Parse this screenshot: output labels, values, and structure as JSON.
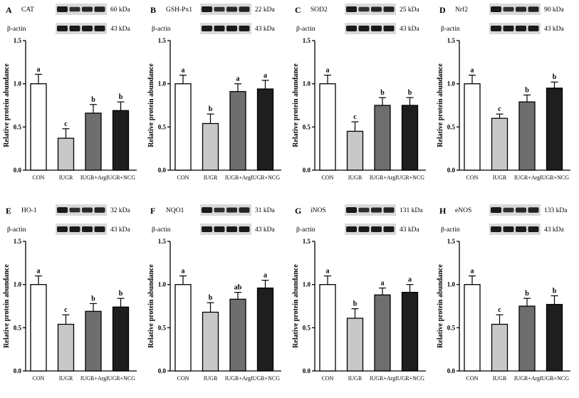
{
  "chart_data": [
    {
      "type": "bar",
      "panel": "A",
      "protein": "CAT",
      "protein_kda": "60 kDa",
      "reference": "β-actin",
      "reference_kda": "43 kDa",
      "categories": [
        "CON",
        "IUGR",
        "IUGR+Arg",
        "IUGR+NCG"
      ],
      "values": [
        1.0,
        0.37,
        0.66,
        0.69
      ],
      "errors": [
        0.11,
        0.11,
        0.1,
        0.1
      ],
      "significance": [
        "a",
        "c",
        "b",
        "b"
      ],
      "ylabel": "Relative protein abundance",
      "ylim": [
        0,
        1.5
      ],
      "yticks": [
        "0.0",
        "0.5",
        "1.0",
        "1.5"
      ]
    },
    {
      "type": "bar",
      "panel": "B",
      "protein": "GSH-Px1",
      "protein_kda": "22 kDa",
      "reference": "β-actin",
      "reference_kda": "43 kDa",
      "categories": [
        "CON",
        "IUGR",
        "IUGR+Arg",
        "IUGR+NCG"
      ],
      "values": [
        1.0,
        0.54,
        0.91,
        0.94
      ],
      "errors": [
        0.1,
        0.11,
        0.09,
        0.1
      ],
      "significance": [
        "a",
        "b",
        "a",
        "a"
      ],
      "ylabel": "Relative protein abundance",
      "ylim": [
        0,
        1.5
      ],
      "yticks": [
        "0.0",
        "0.5",
        "1.0",
        "1.5"
      ]
    },
    {
      "type": "bar",
      "panel": "C",
      "protein": "SOD2",
      "protein_kda": "25 kDa",
      "reference": "β-actin",
      "reference_kda": "43 kDa",
      "categories": [
        "CON",
        "IUGR",
        "IUGR+Arg",
        "IUGR+NCG"
      ],
      "values": [
        1.0,
        0.45,
        0.75,
        0.75
      ],
      "errors": [
        0.1,
        0.11,
        0.09,
        0.09
      ],
      "significance": [
        "a",
        "c",
        "b",
        "b"
      ],
      "ylabel": "Relative protein abundance",
      "ylim": [
        0,
        1.5
      ],
      "yticks": [
        "0.0",
        "0.5",
        "1.0",
        "1.5"
      ]
    },
    {
      "type": "bar",
      "panel": "D",
      "protein": "Nrf2",
      "protein_kda": "90 kDa",
      "reference": "β-actin",
      "reference_kda": "43 kDa",
      "categories": [
        "CON",
        "IUGR",
        "IUGR+Arg",
        "IUGR+NCG"
      ],
      "values": [
        1.0,
        0.6,
        0.79,
        0.95
      ],
      "errors": [
        0.1,
        0.05,
        0.08,
        0.07
      ],
      "significance": [
        "a",
        "c",
        "b",
        "b"
      ],
      "ylabel": "Relative protein abundance",
      "ylim": [
        0,
        1.5
      ],
      "yticks": [
        "0.0",
        "0.5",
        "1.0",
        "1.5"
      ]
    },
    {
      "type": "bar",
      "panel": "E",
      "protein": "HO-1",
      "protein_kda": "32 kDa",
      "reference": "β-actin",
      "reference_kda": "43 kDa",
      "categories": [
        "CON",
        "IUGR",
        "IUGR+Arg",
        "IUGR+NCG"
      ],
      "values": [
        1.0,
        0.54,
        0.69,
        0.74
      ],
      "errors": [
        0.1,
        0.11,
        0.09,
        0.1
      ],
      "significance": [
        "a",
        "c",
        "b",
        "b"
      ],
      "ylabel": "Relative protein abundance",
      "ylim": [
        0,
        1.5
      ],
      "yticks": [
        "0.0",
        "0.5",
        "1.0",
        "1.5"
      ]
    },
    {
      "type": "bar",
      "panel": "F",
      "protein": "NQO1",
      "protein_kda": "31 kDa",
      "reference": "β-actin",
      "reference_kda": "43 kDa",
      "categories": [
        "CON",
        "IUGR",
        "IUGR+Arg",
        "IUGR+NCG"
      ],
      "values": [
        1.0,
        0.68,
        0.83,
        0.96
      ],
      "errors": [
        0.1,
        0.11,
        0.08,
        0.09
      ],
      "significance": [
        "a",
        "b",
        "ab",
        "a"
      ],
      "ylabel": "Relative protein abundance",
      "ylim": [
        0,
        1.5
      ],
      "yticks": [
        "0.0",
        "0.5",
        "1.0",
        "1.5"
      ]
    },
    {
      "type": "bar",
      "panel": "G",
      "protein": "iNOS",
      "protein_kda": "131 kDa",
      "reference": "β-actin",
      "reference_kda": "43 kDa",
      "categories": [
        "CON",
        "IUGR",
        "IUGR+Arg",
        "IUGR+NCG"
      ],
      "values": [
        1.0,
        0.61,
        0.88,
        0.91
      ],
      "errors": [
        0.1,
        0.11,
        0.08,
        0.09
      ],
      "significance": [
        "a",
        "b",
        "a",
        "a"
      ],
      "ylabel": "Relative protein abundance",
      "ylim": [
        0,
        1.5
      ],
      "yticks": [
        "0.0",
        "0.5",
        "1.0",
        "1.5"
      ]
    },
    {
      "type": "bar",
      "panel": "H",
      "protein": "eNOS",
      "protein_kda": "133 kDa",
      "reference": "β-actin",
      "reference_kda": "43 kDa",
      "categories": [
        "CON",
        "IUGR",
        "IUGR+Arg",
        "IUGR+NCG"
      ],
      "values": [
        1.0,
        0.54,
        0.75,
        0.77
      ],
      "errors": [
        0.1,
        0.11,
        0.09,
        0.1
      ],
      "significance": [
        "a",
        "c",
        "b",
        "b"
      ],
      "ylabel": "Relative protein abundance",
      "ylim": [
        0,
        1.5
      ],
      "yticks": [
        "0.0",
        "0.5",
        "1.0",
        "1.5"
      ]
    }
  ],
  "colors": {
    "CON": "#ffffff",
    "IUGR": "#c8c8c8",
    "IUGR+Arg": "#6e6e6e",
    "IUGR+NCG": "#1e1e1e",
    "axis": "#000000",
    "blot_band": "#1a1a1a"
  }
}
